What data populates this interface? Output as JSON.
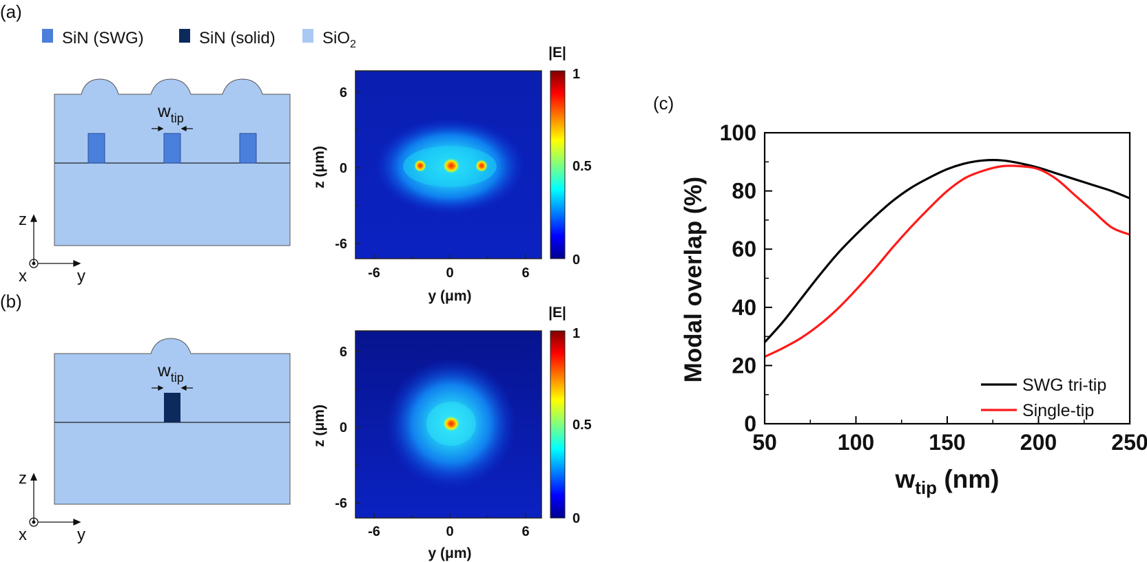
{
  "panel_labels": {
    "a": "(a)",
    "b": "(b)",
    "c": "(c)"
  },
  "legend": {
    "items": [
      {
        "label": "SiN (SWG)",
        "color": "#4a7fdb"
      },
      {
        "label": "SiN (solid)",
        "color": "#0d2a5c"
      },
      {
        "label": "SiO",
        "sub": "2",
        "color": "#a9c9f2"
      }
    ]
  },
  "schematic": {
    "wtip_base": "w",
    "wtip_sub": "tip",
    "axis_z": "z",
    "axis_x": "x",
    "axis_y": "y"
  },
  "field_maps": {
    "colorbar_title": "|E|",
    "colorbar_ticks": [
      "1",
      "0.5",
      "0"
    ],
    "x_ticks": [
      "-6",
      "0",
      "6"
    ],
    "y_ticks": [
      "6",
      "0",
      "-6"
    ],
    "xlabel": "y (μm)",
    "ylabel": "z (μm)"
  },
  "chart_data": {
    "type": "line",
    "title": "",
    "xlabel": "w",
    "xlabel_sub": "tip",
    "xlabel_unit": " (nm)",
    "ylabel": "Modal overlap (%)",
    "xlim": [
      50,
      250
    ],
    "ylim": [
      0,
      100
    ],
    "x_ticks": [
      50,
      100,
      150,
      200,
      250
    ],
    "y_ticks": [
      0,
      20,
      40,
      60,
      80,
      100
    ],
    "legend_position": "bottom-right",
    "series": [
      {
        "name": "SWG tri-tip",
        "color": "#000000",
        "x": [
          50,
          60,
          70,
          80,
          90,
          100,
          110,
          120,
          130,
          140,
          150,
          160,
          170,
          180,
          190,
          200,
          210,
          220,
          230,
          240,
          250
        ],
        "y": [
          28,
          35,
          43,
          51,
          58.5,
          65,
          71,
          76.5,
          81,
          84.5,
          87.5,
          89.5,
          90.5,
          90.5,
          89.5,
          88,
          86,
          84,
          82,
          80,
          77.5
        ]
      },
      {
        "name": "Single-tip",
        "color": "#ff1a1a",
        "x": [
          50,
          60,
          70,
          80,
          90,
          100,
          110,
          120,
          130,
          140,
          150,
          160,
          170,
          180,
          190,
          200,
          210,
          220,
          230,
          240,
          250
        ],
        "y": [
          23,
          26,
          29.5,
          34,
          39.5,
          46,
          53,
          60.5,
          67.5,
          74,
          80,
          84.5,
          87,
          88.5,
          88.5,
          87.5,
          84,
          78.5,
          73,
          67.5,
          65
        ]
      }
    ]
  }
}
